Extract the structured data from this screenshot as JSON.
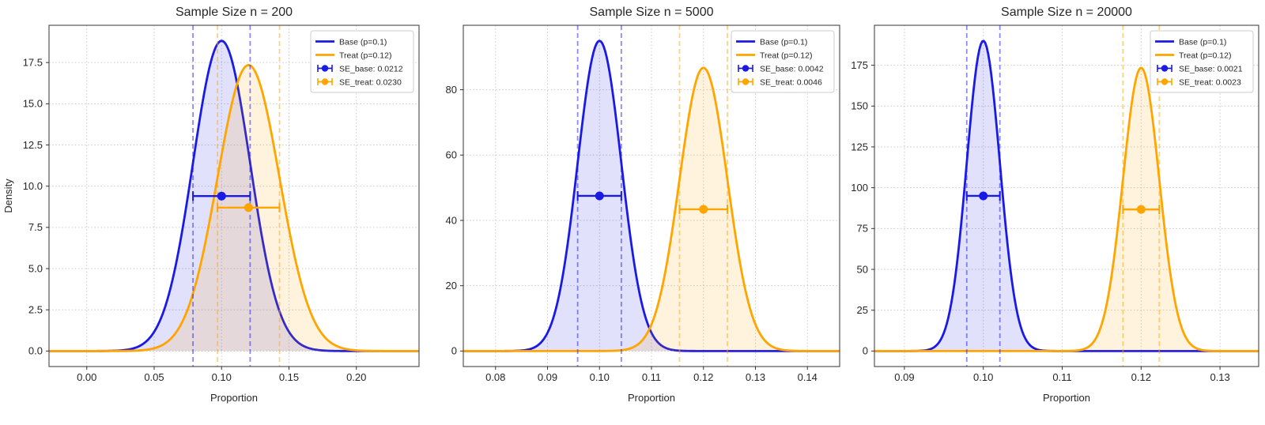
{
  "figure": {
    "background": "#ffffff",
    "grid_color": "#c9c9c9",
    "spine_color": "#333333",
    "text_color": "#262626"
  },
  "chart_data": [
    {
      "type": "area",
      "title": "Sample Size n = 200",
      "xlabel": "Proportion",
      "ylabel": "Density",
      "xlim": [
        -0.028,
        0.2465
      ],
      "ylim": [
        -0.941,
        19.76
      ],
      "grid": true,
      "legend_position": "upper right",
      "xticks": {
        "values": [
          0.0,
          0.05,
          0.1,
          0.15,
          0.2
        ],
        "labels": [
          "0.00",
          "0.05",
          "0.10",
          "0.15",
          "0.20"
        ]
      },
      "yticks": {
        "values": [
          0,
          2.5,
          5,
          7.5,
          10,
          12.5,
          15,
          17.5
        ],
        "labels": [
          "0.0",
          "2.5",
          "5.0",
          "7.5",
          "10.0",
          "12.5",
          "15.0",
          "17.5"
        ]
      },
      "series": [
        {
          "name": "Base (p=0.1)",
          "kind": "normal-pdf",
          "mean": 0.1,
          "se": 0.0212,
          "peak_density": 18.8,
          "color": "#1a1ae6",
          "fill_opacity": 0.13,
          "vlines": [
            0.0788,
            0.1212
          ]
        },
        {
          "name": "Treat (p=0.12)",
          "kind": "normal-pdf",
          "mean": 0.12,
          "se": 0.023,
          "peak_density": 17.3,
          "color": "#ffa500",
          "fill_opacity": 0.13,
          "vlines": [
            0.097,
            0.143
          ]
        }
      ],
      "errorbars": [
        {
          "label": "SE_base: 0.0212",
          "x": 0.1,
          "y": 9.4,
          "xerr": 0.0212,
          "color": "#1a1ae6"
        },
        {
          "label": "SE_treat: 0.0230",
          "x": 0.12,
          "y": 8.7,
          "xerr": 0.023,
          "color": "#ffa500"
        }
      ]
    },
    {
      "type": "area",
      "title": "Sample Size n = 5000",
      "xlabel": "Proportion",
      "ylabel": "",
      "xlim": [
        0.0738,
        0.1462
      ],
      "ylim": [
        -4.75,
        99.74
      ],
      "grid": true,
      "legend_position": "upper right",
      "xticks": {
        "values": [
          0.08,
          0.09,
          0.1,
          0.11,
          0.12,
          0.13,
          0.14
        ],
        "labels": [
          "0.08",
          "0.09",
          "0.10",
          "0.11",
          "0.12",
          "0.13",
          "0.14"
        ]
      },
      "yticks": {
        "values": [
          0,
          20,
          40,
          60,
          80
        ],
        "labels": [
          "0",
          "20",
          "40",
          "60",
          "80"
        ]
      },
      "series": [
        {
          "name": "Base (p=0.1)",
          "kind": "normal-pdf",
          "mean": 0.1,
          "se": 0.0042,
          "peak_density": 95.0,
          "color": "#1a1ae6",
          "fill_opacity": 0.13,
          "vlines": [
            0.0958,
            0.1042
          ]
        },
        {
          "name": "Treat (p=0.12)",
          "kind": "normal-pdf",
          "mean": 0.12,
          "se": 0.0046,
          "peak_density": 86.7,
          "color": "#ffa500",
          "fill_opacity": 0.13,
          "vlines": [
            0.1154,
            0.1246
          ]
        }
      ],
      "errorbars": [
        {
          "label": "SE_base: 0.0042",
          "x": 0.1,
          "y": 47.5,
          "xerr": 0.0042,
          "color": "#1a1ae6"
        },
        {
          "label": "SE_treat: 0.0046",
          "x": 0.12,
          "y": 43.4,
          "xerr": 0.0046,
          "color": "#ffa500"
        }
      ]
    },
    {
      "type": "area",
      "title": "Sample Size n = 20000",
      "xlabel": "Proportion",
      "ylabel": "",
      "xlim": [
        0.0862,
        0.1349
      ],
      "ylim": [
        -9.5,
        199.47
      ],
      "grid": true,
      "legend_position": "upper right",
      "xticks": {
        "values": [
          0.09,
          0.1,
          0.11,
          0.12,
          0.13
        ],
        "labels": [
          "0.09",
          "0.10",
          "0.11",
          "0.12",
          "0.13"
        ]
      },
      "yticks": {
        "values": [
          0,
          25,
          50,
          75,
          100,
          125,
          150,
          175
        ],
        "labels": [
          "0",
          "25",
          "50",
          "75",
          "100",
          "125",
          "150",
          "175"
        ]
      },
      "series": [
        {
          "name": "Base (p=0.1)",
          "kind": "normal-pdf",
          "mean": 0.1,
          "se": 0.0021,
          "peak_density": 190.0,
          "color": "#1a1ae6",
          "fill_opacity": 0.13,
          "vlines": [
            0.0979,
            0.1021
          ]
        },
        {
          "name": "Treat (p=0.12)",
          "kind": "normal-pdf",
          "mean": 0.12,
          "se": 0.0023,
          "peak_density": 173.4,
          "color": "#ffa500",
          "fill_opacity": 0.13,
          "vlines": [
            0.1177,
            0.1223
          ]
        }
      ],
      "errorbars": [
        {
          "label": "SE_base: 0.0021",
          "x": 0.1,
          "y": 95.0,
          "xerr": 0.0021,
          "color": "#1a1ae6"
        },
        {
          "label": "SE_treat: 0.0023",
          "x": 0.12,
          "y": 86.7,
          "xerr": 0.0023,
          "color": "#ffa500"
        }
      ]
    }
  ]
}
